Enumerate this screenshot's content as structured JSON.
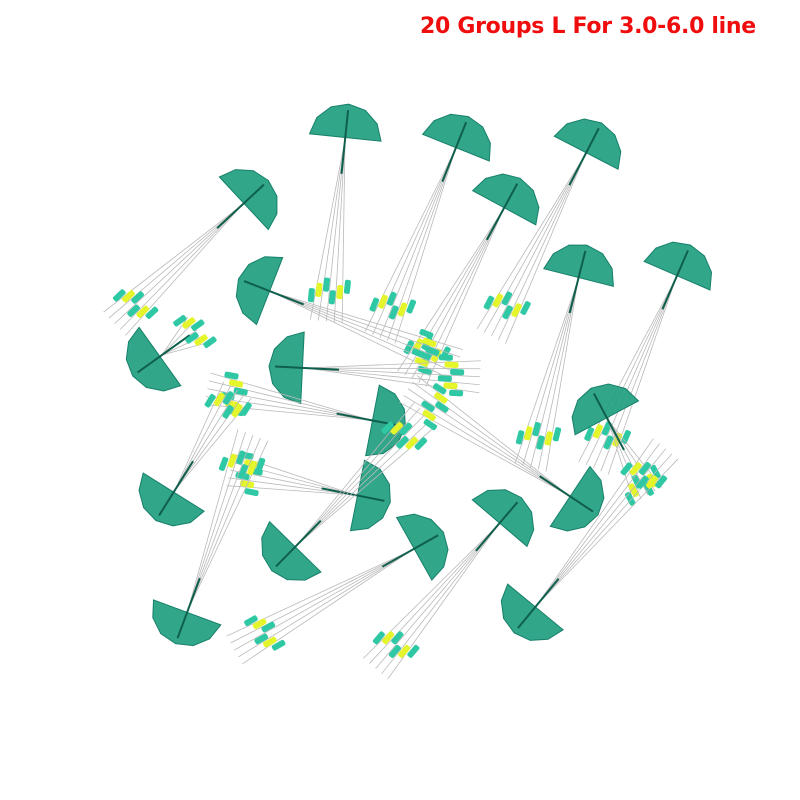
{
  "caption": "20 Groups L For 3.0-6.0 line",
  "product": {
    "group_count": 20,
    "colors": {
      "disc": "#1f9e7f",
      "bead_green": "#2ec9a4",
      "bead_yellow": "#e4f52a",
      "caption": "#f00d0d"
    }
  }
}
